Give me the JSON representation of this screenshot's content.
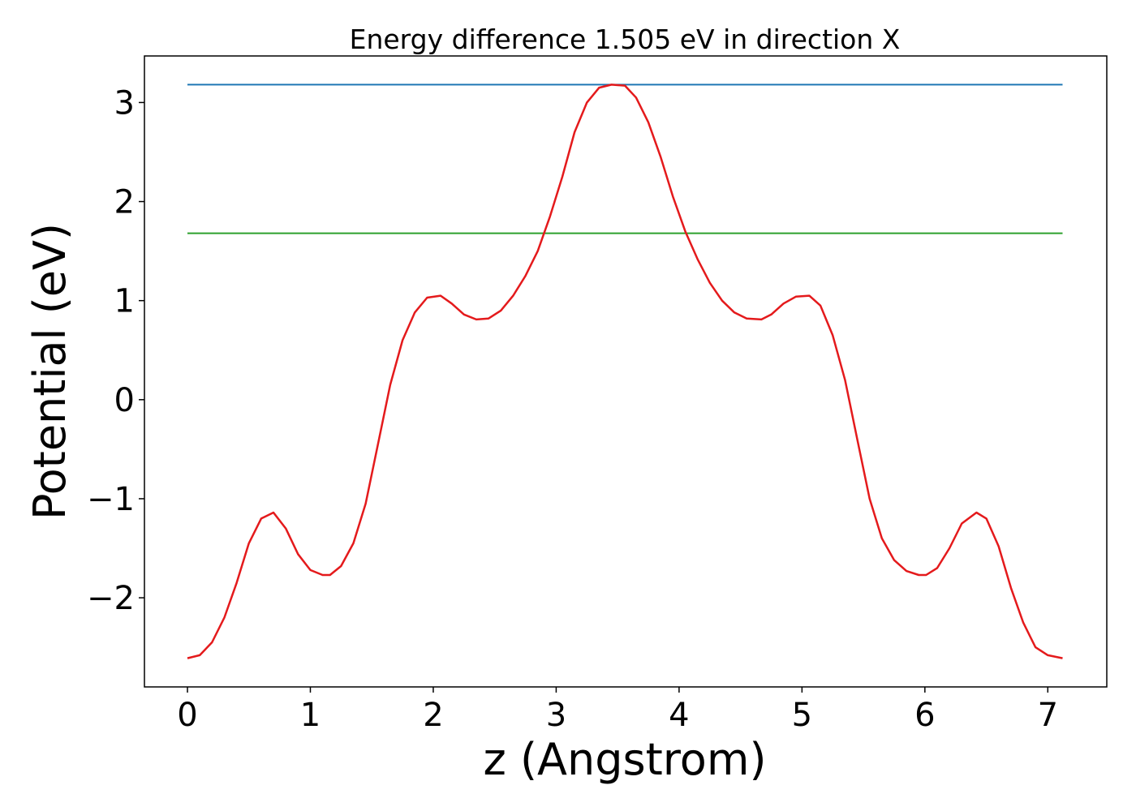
{
  "chart_data": {
    "type": "line",
    "title": "Energy difference 1.505 eV in direction X",
    "xlabel": "z (Angstrom)",
    "ylabel": "Potential (eV)",
    "xlim": [
      -0.35,
      7.48
    ],
    "ylim": [
      -2.9,
      3.47
    ],
    "xticks": [
      0,
      1,
      2,
      3,
      4,
      5,
      6,
      7
    ],
    "xtick_labels": [
      "0",
      "1",
      "2",
      "3",
      "4",
      "5",
      "6",
      "7"
    ],
    "yticks": [
      -2,
      -1,
      0,
      1,
      2,
      3
    ],
    "ytick_labels": [
      "−2",
      "−1",
      "0",
      "1",
      "2",
      "3"
    ],
    "grid": false,
    "series": [
      {
        "color": "#1f77b4",
        "x": [
          0,
          7.12
        ],
        "y": [
          3.18,
          3.18
        ]
      },
      {
        "color": "#2ca02c",
        "x": [
          0,
          7.12
        ],
        "y": [
          1.68,
          1.68
        ]
      },
      {
        "color": "#e41a1c",
        "x": [
          0,
          0.1,
          0.2,
          0.3,
          0.4,
          0.5,
          0.6,
          0.7,
          0.8,
          0.9,
          1.0,
          1.1,
          1.16,
          1.25,
          1.35,
          1.45,
          1.55,
          1.65,
          1.75,
          1.85,
          1.95,
          2.06,
          2.15,
          2.25,
          2.35,
          2.45,
          2.55,
          2.65,
          2.75,
          2.85,
          2.95,
          3.05,
          3.15,
          3.25,
          3.35,
          3.45,
          3.56,
          3.65,
          3.75,
          3.85,
          3.95,
          4.05,
          4.15,
          4.25,
          4.35,
          4.45,
          4.55,
          4.67,
          4.75,
          4.85,
          4.95,
          5.06,
          5.15,
          5.25,
          5.35,
          5.45,
          5.55,
          5.65,
          5.75,
          5.85,
          5.95,
          6.01,
          6.1,
          6.2,
          6.3,
          6.42,
          6.5,
          6.6,
          6.7,
          6.8,
          6.9,
          7.0,
          7.12
        ],
        "y": [
          -2.61,
          -2.58,
          -2.45,
          -2.2,
          -1.85,
          -1.45,
          -1.2,
          -1.14,
          -1.3,
          -1.56,
          -1.72,
          -1.77,
          -1.77,
          -1.68,
          -1.45,
          -1.05,
          -0.45,
          0.15,
          0.6,
          0.88,
          1.03,
          1.05,
          0.97,
          0.86,
          0.81,
          0.82,
          0.9,
          1.05,
          1.25,
          1.5,
          1.85,
          2.25,
          2.7,
          3.0,
          3.15,
          3.18,
          3.17,
          3.05,
          2.8,
          2.45,
          2.05,
          1.7,
          1.42,
          1.18,
          1.0,
          0.88,
          0.82,
          0.81,
          0.86,
          0.97,
          1.04,
          1.05,
          0.95,
          0.65,
          0.2,
          -0.4,
          -1.0,
          -1.4,
          -1.62,
          -1.73,
          -1.77,
          -1.77,
          -1.7,
          -1.5,
          -1.25,
          -1.14,
          -1.2,
          -1.48,
          -1.9,
          -2.25,
          -2.5,
          -2.58,
          -2.61
        ]
      }
    ]
  }
}
